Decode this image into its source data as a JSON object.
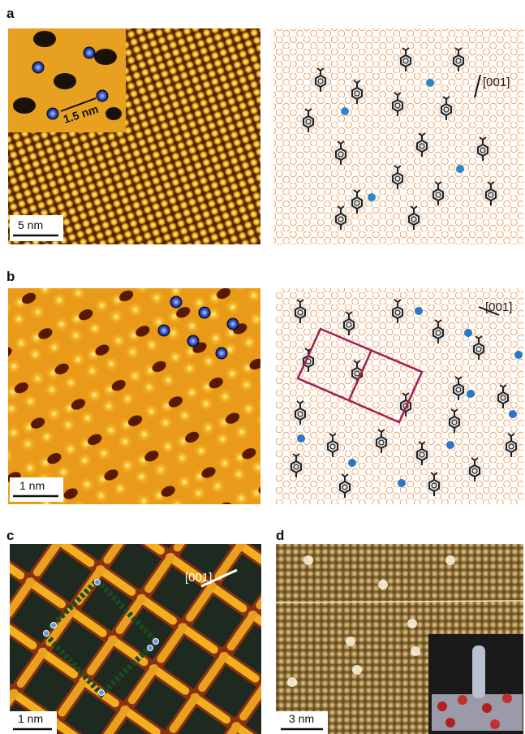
{
  "panels": [
    {
      "label": "a",
      "inset_scale": "1.5 nm",
      "scale_bar": "5 nm",
      "direction": "[001]"
    },
    {
      "label": "b",
      "scale_bar": "1 nm",
      "direction": "[001]"
    },
    {
      "label": "c",
      "scale_bar": "1 nm",
      "direction": "[001]"
    },
    {
      "label": "d",
      "scale_bar": "3 nm"
    }
  ]
}
